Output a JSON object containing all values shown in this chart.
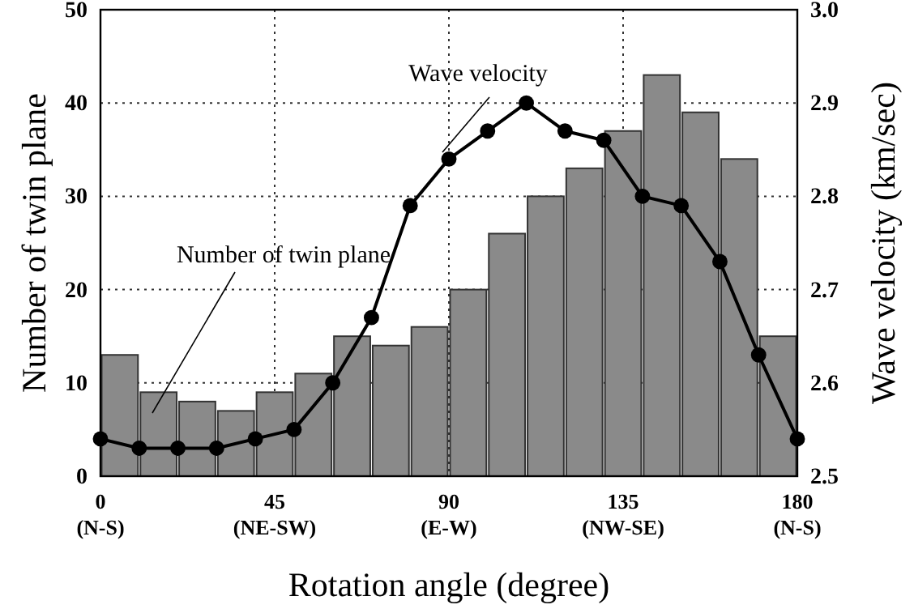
{
  "chart_data": {
    "type": "histogram",
    "xlabel": "Rotation angle (degree)",
    "ylabel": "Number of twin plane",
    "y2label": "Wave velocity (km/sec)",
    "bins": [
      0,
      10,
      20,
      30,
      40,
      50,
      60,
      70,
      80,
      90,
      100,
      110,
      120,
      130,
      140,
      150,
      160,
      170,
      180
    ],
    "values": [
      13,
      9,
      8,
      7,
      9,
      11,
      15,
      14,
      16,
      20,
      26,
      30,
      33,
      37,
      43,
      39,
      34,
      15
    ],
    "color": "#8a8a8a",
    "series": [
      {
        "type": "line",
        "axis": "y2",
        "color": "#000000",
        "x": [
          0,
          10,
          20,
          30,
          40,
          50,
          60,
          70,
          80,
          90,
          100,
          110,
          120,
          130,
          140,
          150,
          160,
          170,
          180
        ],
        "values": [
          2.54,
          2.53,
          2.53,
          2.53,
          2.54,
          2.55,
          2.6,
          2.67,
          2.79,
          2.84,
          2.87,
          2.9,
          2.87,
          2.86,
          2.8,
          2.79,
          2.73,
          2.63,
          2.54
        ]
      }
    ],
    "xlim": [
      0,
      180
    ],
    "xticks": [
      {
        "value": 0,
        "label": "0\n(N-S)"
      },
      {
        "value": 45,
        "label": "45\n(NE-SW)"
      },
      {
        "value": 90,
        "label": "90\n(E-W)"
      },
      {
        "value": 135,
        "label": "135\n(NW-SE)"
      },
      {
        "value": 180,
        "label": "180\n(N-S)"
      }
    ],
    "ylim": [
      0,
      50
    ],
    "yticks": [
      0,
      10,
      20,
      30,
      40,
      50
    ],
    "y2lim": [
      2.5,
      3.0
    ],
    "y2ticks": [
      {
        "value": 2.5,
        "label": "2.5"
      },
      {
        "value": 2.6,
        "label": "2.6"
      },
      {
        "value": 2.7,
        "label": "2.7"
      },
      {
        "value": 2.8,
        "label": "2.8"
      },
      {
        "value": 2.9,
        "label": "2.9"
      },
      {
        "value": 3.0,
        "label": "3.0"
      }
    ],
    "grid": true,
    "marker": "circle",
    "line_style": "solid",
    "annotations": [
      "Wave velocity",
      "Number of twin plane"
    ]
  }
}
